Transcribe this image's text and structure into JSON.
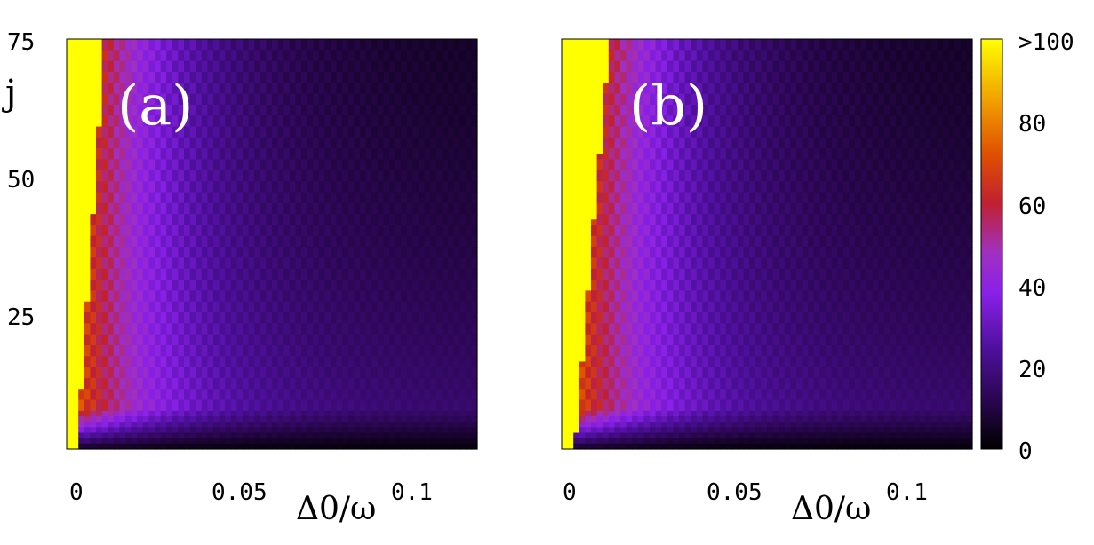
{
  "chart_data": [
    {
      "type": "heatmap",
      "panel_label": "(a)",
      "xlabel": "Δ0/ω",
      "ylabel": "j",
      "xlim": [
        -0.002,
        0.12
      ],
      "ylim": [
        0,
        75
      ],
      "xticks": [
        "0",
        "0.05",
        "0.1"
      ],
      "yticks": [
        "75",
        "50",
        "25"
      ],
      "description": "value ~>100 near Δ0/ω≈0, bright red/orange boundary curving down-right, decaying to dark purple for larger Δ0/ω and smaller j"
    },
    {
      "type": "heatmap",
      "panel_label": "(b)",
      "xlabel": "Δ0/ω",
      "ylabel": "",
      "xlim": [
        -0.002,
        0.12
      ],
      "ylim": [
        0,
        75
      ],
      "xticks": [
        "0",
        "0.05",
        "0.1"
      ],
      "yticks": [],
      "description": "similar to (a) with broader high-value region"
    }
  ],
  "colorbar": {
    "labels": [
      ">100",
      "80",
      "60",
      "40",
      "20",
      "0"
    ],
    "range": [
      0,
      100
    ],
    "colors": [
      "#000000",
      "#3a0a70",
      "#6b10c8",
      "#9b30f0",
      "#c03070",
      "#d84010",
      "#f0a000",
      "#ffff00"
    ]
  }
}
